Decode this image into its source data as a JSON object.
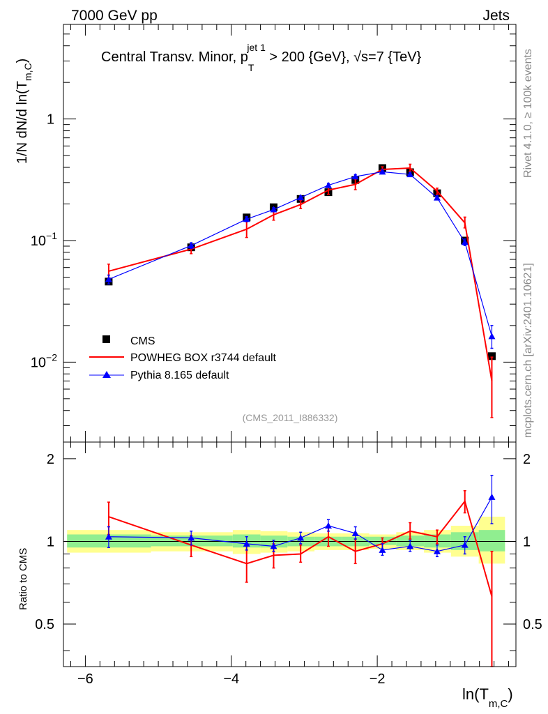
{
  "header": {
    "left": "7000 GeV pp",
    "right": "Jets"
  },
  "side_labels": {
    "rivet": "Rivet 4.1.0, ≥ 100k events",
    "mcplots": "mcplots.cern.ch [arXiv:2401.10621]"
  },
  "chart_data": {
    "type": "line",
    "title": {
      "prefix": "Central Transv. Minor, p",
      "sub": "T",
      "sup": "jet 1",
      "suffix": " > 200 {GeV}, √s=7 {TeV}"
    },
    "analysis_id": "(CMS_2011_I886332)",
    "xlabel": {
      "main": "ln(T",
      "sub": "m,C",
      "close": ")"
    },
    "ylabel": {
      "prefix": "1/N    dN/d ln(T",
      "sub": "m,C",
      "close": ")"
    },
    "ratio_ylabel": "Ratio to CMS",
    "xlim": [
      -6.3,
      -0.1
    ],
    "ylim": [
      0.0022,
      6.0
    ],
    "ratio_ylim": [
      0.35,
      2.3
    ],
    "x_ticks": [
      {
        "value": -6,
        "label": "−6"
      },
      {
        "value": -4,
        "label": "−4"
      },
      {
        "value": -2,
        "label": "−2"
      }
    ],
    "y_ticks": [
      {
        "value": 1,
        "base": "1",
        "exp": ""
      },
      {
        "value": 0.1,
        "base": "10",
        "exp": "−1"
      },
      {
        "value": 0.01,
        "base": "10",
        "exp": "−2"
      }
    ],
    "ratio_ticks": [
      {
        "value": 2,
        "label": "2"
      },
      {
        "value": 1,
        "label": "1"
      },
      {
        "value": 0.5,
        "label": "0.5"
      }
    ],
    "legend": [
      {
        "key": "cms",
        "label": "CMS"
      },
      {
        "key": "powheg",
        "label": "POWHEG BOX r3744 default"
      },
      {
        "key": "pythia",
        "label": "Pythia 8.165 default"
      }
    ],
    "series": [
      {
        "name": "CMS",
        "key": "cms",
        "color": "#000000",
        "x": [
          -5.68,
          -4.55,
          -3.79,
          -3.42,
          -3.05,
          -2.67,
          -2.3,
          -1.93,
          -1.55,
          -1.18,
          -0.8,
          -0.43
        ],
        "values": [
          0.046,
          0.088,
          0.155,
          0.188,
          0.22,
          0.25,
          0.315,
          0.395,
          0.365,
          0.245,
          0.1,
          0.0112
        ]
      },
      {
        "name": "POWHEG BOX r3744 default",
        "key": "powheg",
        "color": "#ff0000",
        "x": [
          -5.68,
          -4.55,
          -3.79,
          -3.42,
          -3.05,
          -2.67,
          -2.3,
          -1.93,
          -1.55,
          -1.18,
          -0.8,
          -0.43
        ],
        "values": [
          0.056,
          0.085,
          0.124,
          0.163,
          0.198,
          0.26,
          0.29,
          0.385,
          0.395,
          0.255,
          0.14,
          0.007
        ],
        "err_lo": [
          0.049,
          0.078,
          0.106,
          0.147,
          0.183,
          0.24,
          0.262,
          0.367,
          0.37,
          0.24,
          0.127,
          0.0035
        ],
        "err_hi": [
          0.064,
          0.093,
          0.144,
          0.182,
          0.214,
          0.282,
          0.32,
          0.405,
          0.425,
          0.27,
          0.156,
          0.011
        ]
      },
      {
        "name": "Pythia 8.165 default",
        "key": "pythia",
        "color": "#0000ff",
        "x": [
          -5.68,
          -4.55,
          -3.79,
          -3.42,
          -3.05,
          -2.67,
          -2.3,
          -1.93,
          -1.55,
          -1.18,
          -0.8,
          -0.43
        ],
        "values": [
          0.048,
          0.091,
          0.15,
          0.18,
          0.226,
          0.285,
          0.336,
          0.368,
          0.35,
          0.225,
          0.097,
          0.0163
        ],
        "err_lo": [
          0.044,
          0.086,
          0.143,
          0.173,
          0.219,
          0.275,
          0.323,
          0.356,
          0.338,
          0.217,
          0.091,
          0.013
        ],
        "err_hi": [
          0.052,
          0.096,
          0.157,
          0.187,
          0.233,
          0.295,
          0.349,
          0.38,
          0.362,
          0.233,
          0.103,
          0.02
        ]
      }
    ],
    "ratio": {
      "powheg": {
        "values": [
          1.23,
          0.97,
          0.83,
          0.89,
          0.9,
          1.04,
          0.92,
          0.98,
          1.09,
          1.04,
          1.4,
          0.63
        ],
        "err_lo": [
          1.06,
          0.88,
          0.71,
          0.8,
          0.84,
          0.96,
          0.83,
          0.93,
          1.02,
          0.98,
          1.27,
          0.35
        ],
        "err_hi": [
          1.39,
          1.05,
          0.96,
          0.98,
          0.97,
          1.12,
          1.02,
          1.03,
          1.17,
          1.1,
          1.53,
          0.92
        ]
      },
      "pythia": {
        "values": [
          1.04,
          1.03,
          0.98,
          0.96,
          1.03,
          1.14,
          1.07,
          0.93,
          0.96,
          0.92,
          0.97,
          1.45
        ],
        "err_lo": [
          0.95,
          0.97,
          0.93,
          0.92,
          0.98,
          1.09,
          1.02,
          0.89,
          0.92,
          0.88,
          0.9,
          1.16
        ],
        "err_hi": [
          1.13,
          1.09,
          1.04,
          1.01,
          1.08,
          1.2,
          1.13,
          0.98,
          1.01,
          0.97,
          1.04,
          1.74
        ]
      },
      "bands": {
        "edges": [
          -6.25,
          -5.1,
          -3.98,
          -3.6,
          -3.23,
          -2.86,
          -2.48,
          -2.11,
          -1.74,
          -1.36,
          -0.99,
          -0.61,
          -0.25
        ],
        "inner_lo": [
          0.95,
          0.96,
          0.95,
          0.95,
          0.96,
          0.96,
          0.96,
          0.97,
          0.96,
          0.95,
          0.93,
          0.92
        ],
        "inner_hi": [
          1.06,
          1.05,
          1.06,
          1.05,
          1.04,
          1.04,
          1.04,
          1.04,
          1.05,
          1.06,
          1.08,
          1.1
        ],
        "outer_lo": [
          0.91,
          0.92,
          0.9,
          0.91,
          0.92,
          0.93,
          0.93,
          0.94,
          0.93,
          0.91,
          0.88,
          0.83
        ],
        "outer_hi": [
          1.1,
          1.08,
          1.1,
          1.09,
          1.08,
          1.07,
          1.07,
          1.06,
          1.08,
          1.1,
          1.14,
          1.23
        ]
      }
    }
  },
  "colors": {
    "band_inner": "#90ee90",
    "band_outer": "#ffff90",
    "axis": "#000000"
  }
}
